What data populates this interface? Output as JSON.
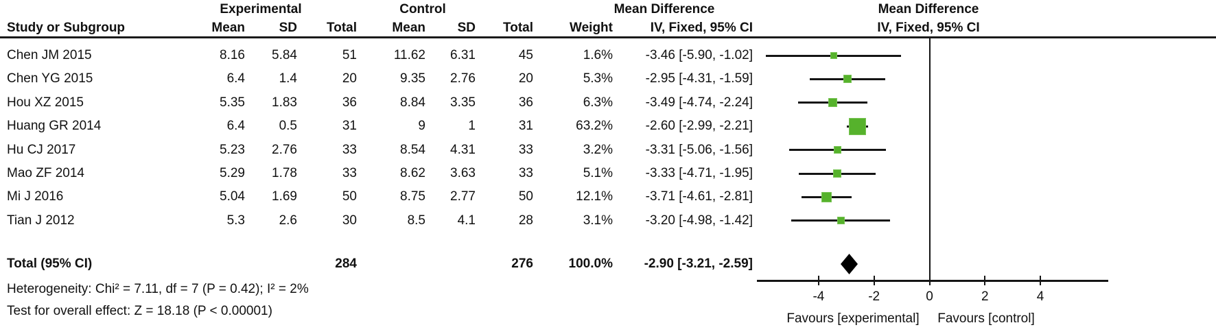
{
  "group_headers": {
    "experimental": "Experimental",
    "control": "Control",
    "mean_difference_table": "Mean Difference",
    "mean_difference_plot": "Mean Difference",
    "iv_fixed_plot": "IV, Fixed, 95% CI"
  },
  "columns": [
    "Study or Subgroup",
    "Mean",
    "SD",
    "Total",
    "Mean",
    "SD",
    "Total",
    "Weight",
    "IV, Fixed, 95% CI"
  ],
  "studies": [
    {
      "name": "Chen JM 2015",
      "exp_mean": "8.16",
      "exp_sd": "5.84",
      "exp_total": "51",
      "ctrl_mean": "11.62",
      "ctrl_sd": "6.31",
      "ctrl_total": "45",
      "weight": "1.6%",
      "ci_text": "-3.46 [-5.90, -1.02]",
      "md": -3.46,
      "ci_low": -5.9,
      "ci_high": -1.02,
      "weight_value": 1.6
    },
    {
      "name": "Chen YG 2015",
      "exp_mean": "6.4",
      "exp_sd": "1.4",
      "exp_total": "20",
      "ctrl_mean": "9.35",
      "ctrl_sd": "2.76",
      "ctrl_total": "20",
      "weight": "5.3%",
      "ci_text": "-2.95 [-4.31, -1.59]",
      "md": -2.95,
      "ci_low": -4.31,
      "ci_high": -1.59,
      "weight_value": 5.3
    },
    {
      "name": "Hou XZ 2015",
      "exp_mean": "5.35",
      "exp_sd": "1.83",
      "exp_total": "36",
      "ctrl_mean": "8.84",
      "ctrl_sd": "3.35",
      "ctrl_total": "36",
      "weight": "6.3%",
      "ci_text": "-3.49 [-4.74, -2.24]",
      "md": -3.49,
      "ci_low": -4.74,
      "ci_high": -2.24,
      "weight_value": 6.3
    },
    {
      "name": "Huang GR 2014",
      "exp_mean": "6.4",
      "exp_sd": "0.5",
      "exp_total": "31",
      "ctrl_mean": "9",
      "ctrl_sd": "1",
      "ctrl_total": "31",
      "weight": "63.2%",
      "ci_text": "-2.60 [-2.99, -2.21]",
      "md": -2.6,
      "ci_low": -2.99,
      "ci_high": -2.21,
      "weight_value": 63.2
    },
    {
      "name": "Hu CJ 2017",
      "exp_mean": "5.23",
      "exp_sd": "2.76",
      "exp_total": "33",
      "ctrl_mean": "8.54",
      "ctrl_sd": "4.31",
      "ctrl_total": "33",
      "weight": "3.2%",
      "ci_text": "-3.31 [-5.06, -1.56]",
      "md": -3.31,
      "ci_low": -5.06,
      "ci_high": -1.56,
      "weight_value": 3.2
    },
    {
      "name": "Mao ZF 2014",
      "exp_mean": "5.29",
      "exp_sd": "1.78",
      "exp_total": "33",
      "ctrl_mean": "8.62",
      "ctrl_sd": "3.63",
      "ctrl_total": "33",
      "weight": "5.1%",
      "ci_text": "-3.33 [-4.71, -1.95]",
      "md": -3.33,
      "ci_low": -4.71,
      "ci_high": -1.95,
      "weight_value": 5.1
    },
    {
      "name": "Mi J 2016",
      "exp_mean": "5.04",
      "exp_sd": "1.69",
      "exp_total": "50",
      "ctrl_mean": "8.75",
      "ctrl_sd": "2.77",
      "ctrl_total": "50",
      "weight": "12.1%",
      "ci_text": "-3.71 [-4.61, -2.81]",
      "md": -3.71,
      "ci_low": -4.61,
      "ci_high": -2.81,
      "weight_value": 12.1
    },
    {
      "name": "Tian J 2012",
      "exp_mean": "5.3",
      "exp_sd": "2.6",
      "exp_total": "30",
      "ctrl_mean": "8.5",
      "ctrl_sd": "4.1",
      "ctrl_total": "28",
      "weight": "3.1%",
      "ci_text": "-3.20 [-4.98, -1.42]",
      "md": -3.2,
      "ci_low": -4.98,
      "ci_high": -1.42,
      "weight_value": 3.1
    }
  ],
  "total": {
    "label": "Total (95% CI)",
    "exp_total": "284",
    "ctrl_total": "276",
    "weight": "100.0%",
    "ci_text": "-2.90 [-3.21, -2.59]",
    "md": -2.9,
    "ci_low": -3.21,
    "ci_high": -2.59
  },
  "footer": {
    "heterogeneity": "Heterogeneity: Chi² = 7.11, df = 7 (P = 0.42); I² = 2%",
    "overall_effect": "Test for overall effect: Z = 18.18 (P < 0.00001)"
  },
  "axis": {
    "ticks": [
      -4,
      -2,
      0,
      2,
      4
    ],
    "tick_labels": [
      "-4",
      "-2",
      "0",
      "2",
      "4"
    ],
    "favours_left": "Favours [experimental]",
    "favours_right": "Favours [control]"
  },
  "colors": {
    "square_green": "#56B22C",
    "line_black": "#141414",
    "diamond_black": "#000000"
  },
  "chart_data": {
    "type": "forest",
    "effect_measure": "Mean Difference, IV, Fixed, 95% CI",
    "studies": [
      "Chen JM 2015",
      "Chen YG 2015",
      "Hou XZ 2015",
      "Huang GR 2014",
      "Hu CJ 2017",
      "Mao ZF 2014",
      "Mi J 2016",
      "Tian J 2012"
    ],
    "mean_difference": [
      -3.46,
      -2.95,
      -3.49,
      -2.6,
      -3.31,
      -3.33,
      -3.71,
      -3.2
    ],
    "ci_low": [
      -5.9,
      -4.31,
      -4.74,
      -2.99,
      -5.06,
      -4.71,
      -4.61,
      -4.98
    ],
    "ci_high": [
      -1.02,
      -1.59,
      -2.24,
      -2.21,
      -1.56,
      -1.95,
      -2.81,
      -1.42
    ],
    "weights_pct": [
      1.6,
      5.3,
      6.3,
      63.2,
      3.2,
      5.1,
      12.1,
      3.1
    ],
    "experimental": {
      "mean": [
        8.16,
        6.4,
        5.35,
        6.4,
        5.23,
        5.29,
        5.04,
        5.3
      ],
      "sd": [
        5.84,
        1.4,
        1.83,
        0.5,
        2.76,
        1.78,
        1.69,
        2.6
      ],
      "total": [
        51,
        20,
        36,
        31,
        33,
        33,
        50,
        30
      ]
    },
    "control": {
      "mean": [
        11.62,
        9.35,
        8.84,
        9,
        8.54,
        8.62,
        8.75,
        8.5
      ],
      "sd": [
        6.31,
        2.76,
        3.35,
        1,
        4.31,
        3.63,
        2.77,
        4.1
      ],
      "total": [
        45,
        20,
        36,
        31,
        33,
        33,
        50,
        28
      ]
    },
    "total_effect": {
      "md": -2.9,
      "ci_low": -3.21,
      "ci_high": -2.59,
      "exp_total": 284,
      "ctrl_total": 276
    },
    "heterogeneity": {
      "chi2": 7.11,
      "df": 7,
      "p": 0.42,
      "i2_pct": 2
    },
    "overall_effect_test": {
      "z": 18.18,
      "p": "< 0.00001"
    },
    "xlim": [
      -6.2,
      6.4
    ],
    "x_ticks": [
      -4,
      -2,
      0,
      2,
      4
    ],
    "xlabel_left": "Favours [experimental]",
    "xlabel_right": "Favours [control]"
  }
}
